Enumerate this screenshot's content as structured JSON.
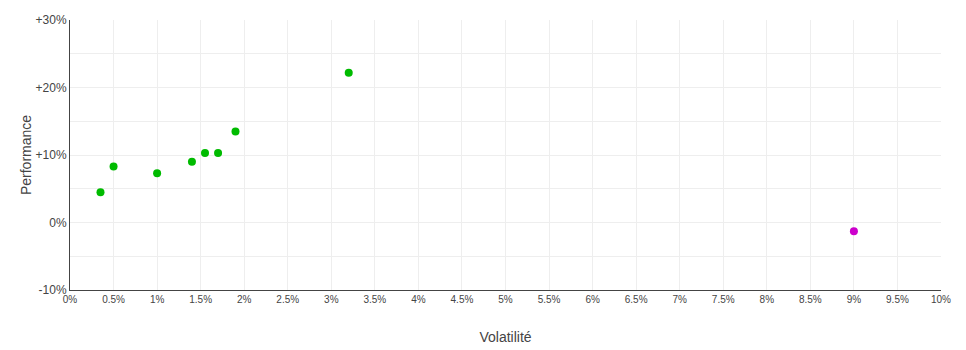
{
  "chart_data": {
    "type": "scatter",
    "xlabel": "Volatilité",
    "ylabel": "Performance",
    "series": [
      {
        "color": "#00bb00",
        "x": [
          0.0035,
          0.005,
          0.01,
          0.014,
          0.0155,
          0.017,
          0.019,
          0.032
        ],
        "values": [
          0.045,
          0.083,
          0.073,
          0.09,
          0.103,
          0.103,
          0.135,
          0.222
        ]
      },
      {
        "color": "#cc00cc",
        "x": [
          0.09
        ],
        "values": [
          -0.013
        ]
      }
    ],
    "xlim": [
      0.0,
      0.1
    ],
    "ylim": [
      -0.1,
      0.3
    ],
    "xticks": [
      {
        "value": 0.0,
        "label": "0%"
      },
      {
        "value": 0.005,
        "label": "0.5%"
      },
      {
        "value": 0.01,
        "label": "1%"
      },
      {
        "value": 0.015,
        "label": "1.5%"
      },
      {
        "value": 0.02,
        "label": "2%"
      },
      {
        "value": 0.025,
        "label": "2.5%"
      },
      {
        "value": 0.03,
        "label": "3%"
      },
      {
        "value": 0.035,
        "label": "3.5%"
      },
      {
        "value": 0.04,
        "label": "4%"
      },
      {
        "value": 0.045,
        "label": "4.5%"
      },
      {
        "value": 0.05,
        "label": "5%"
      },
      {
        "value": 0.055,
        "label": "5.5%"
      },
      {
        "value": 0.06,
        "label": "6%"
      },
      {
        "value": 0.065,
        "label": "6.5%"
      },
      {
        "value": 0.07,
        "label": "7%"
      },
      {
        "value": 0.075,
        "label": "7.5%"
      },
      {
        "value": 0.08,
        "label": "8%"
      },
      {
        "value": 0.085,
        "label": "8.5%"
      },
      {
        "value": 0.09,
        "label": "9%"
      },
      {
        "value": 0.095,
        "label": "9.5%"
      },
      {
        "value": 0.1,
        "label": "10%"
      }
    ],
    "yticks": [
      {
        "value": -0.1,
        "label": "-10%"
      },
      {
        "value": -0.05,
        "label": null
      },
      {
        "value": 0.0,
        "label": "0%"
      },
      {
        "value": 0.05,
        "label": null
      },
      {
        "value": 0.1,
        "label": "+10%"
      },
      {
        "value": 0.15,
        "label": null
      },
      {
        "value": 0.2,
        "label": "+20%"
      },
      {
        "value": 0.25,
        "label": null
      },
      {
        "value": 0.3,
        "label": "+30%"
      }
    ],
    "grid": true
  }
}
